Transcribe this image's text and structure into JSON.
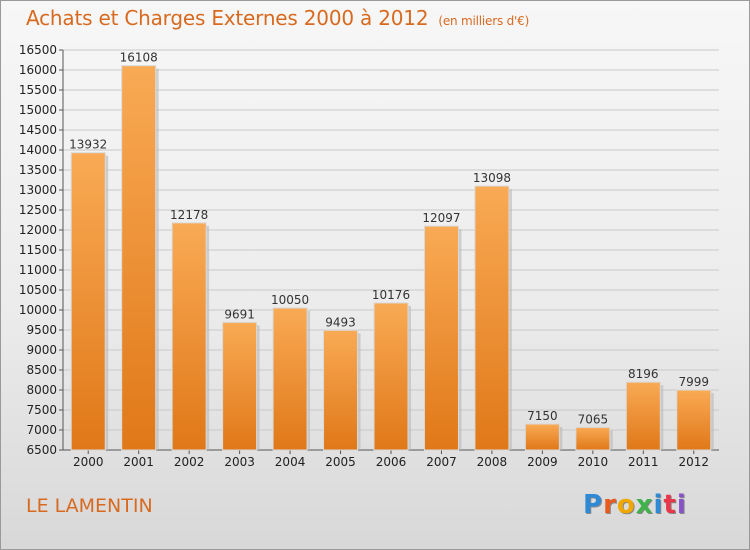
{
  "title": "Achats et Charges Externes 2000 à 2012",
  "unit": "(en milliers d'€)",
  "location": "LE LAMENTIN",
  "logo": {
    "text": "Proxiti",
    "colors": [
      "#2f8ad6",
      "#e85a1e",
      "#f0a800",
      "#3fb24a",
      "#2f8ad6",
      "#e8364a",
      "#8a52c8"
    ]
  },
  "chart_data": {
    "type": "bar",
    "categories": [
      "2000",
      "2001",
      "2002",
      "2003",
      "2004",
      "2005",
      "2006",
      "2007",
      "2008",
      "2009",
      "2010",
      "2011",
      "2012"
    ],
    "values": [
      13932,
      16108,
      12178,
      9691,
      10050,
      9493,
      10176,
      12097,
      13098,
      7150,
      7065,
      8196,
      7999
    ],
    "ylim": [
      6500,
      16500
    ],
    "yticks": [
      6500,
      7000,
      7500,
      8000,
      8500,
      9000,
      9500,
      10000,
      10500,
      11000,
      11500,
      12000,
      12500,
      13000,
      13500,
      14000,
      14500,
      15000,
      15500,
      16000,
      16500
    ],
    "grid": true,
    "bar_color": "#f0902c"
  }
}
